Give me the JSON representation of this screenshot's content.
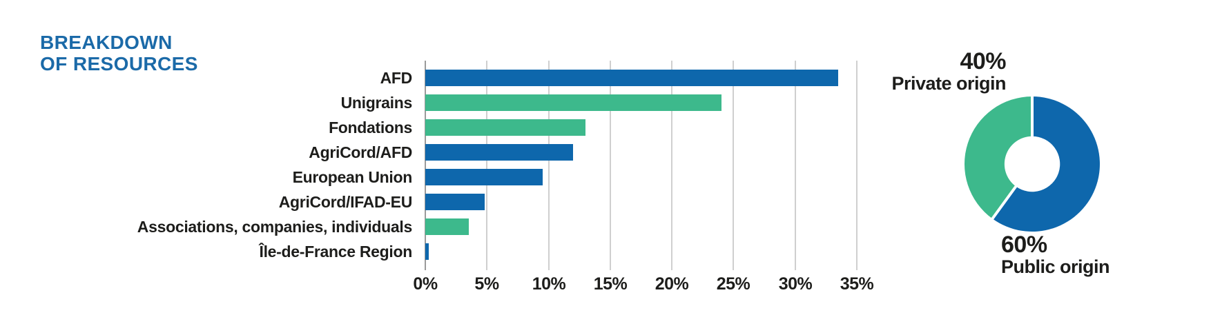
{
  "title": {
    "line1": "BREAKDOWN",
    "line2": "OF RESOURCES"
  },
  "colors": {
    "title_blue": "#1B6AA8",
    "bar_blue": "#0E67AC",
    "bar_green": "#3DB98C",
    "text_dark": "#1D1D1B",
    "gridline": "#CFCFCF",
    "zero_gridline": "#9A9A9A",
    "background": "#FFFFFF"
  },
  "chart_data": [
    {
      "type": "bar",
      "orientation": "horizontal",
      "title": "",
      "xlabel": "",
      "ylabel": "",
      "categories": [
        "AFD",
        "Unigrains",
        "Fondations",
        "AgriCord/AFD",
        "European Union",
        "AgriCord/IFAD-EU",
        "Associations, companies, individuals",
        "Île-de-France Region"
      ],
      "values": [
        33.5,
        24,
        13,
        12,
        9.5,
        4.8,
        3.5,
        0.3
      ],
      "bar_colors": [
        "#0E67AC",
        "#3DB98C",
        "#3DB98C",
        "#0E67AC",
        "#0E67AC",
        "#0E67AC",
        "#3DB98C",
        "#0E67AC"
      ],
      "x_tick_labels": [
        "0%",
        "5%",
        "10%",
        "15%",
        "20%",
        "25%",
        "30%",
        "35%"
      ],
      "xlim": [
        0,
        35
      ],
      "grid": true,
      "legend": false
    },
    {
      "type": "pie",
      "style": "donut",
      "title": "",
      "inner_radius_ratio": 0.41,
      "start_angle_deg": 0,
      "direction": "clockwise",
      "slices": [
        {
          "label": "Public origin",
          "pct_label": "60%",
          "value": 60,
          "color": "#0E67AC"
        },
        {
          "label": "Private origin",
          "pct_label": "40%",
          "value": 40,
          "color": "#3DB98C"
        }
      ],
      "legend": false
    }
  ]
}
